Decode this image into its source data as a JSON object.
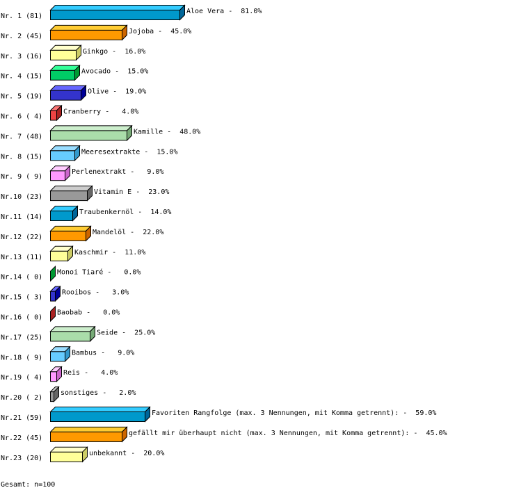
{
  "chart_data": {
    "type": "bar",
    "orientation": "horizontal",
    "style": "3d",
    "rows": [
      {
        "rank": "Nr. 1",
        "count": "(81)",
        "category": "Aloe Vera",
        "value": 81.0,
        "label": "Aloe Vera -  81.0%"
      },
      {
        "rank": "Nr. 2",
        "count": "(45)",
        "category": "Jojoba",
        "value": 45.0,
        "label": "Jojoba -  45.0%"
      },
      {
        "rank": "Nr. 3",
        "count": "(16)",
        "category": "Ginkgo",
        "value": 16.0,
        "label": "Ginkgo -  16.0%"
      },
      {
        "rank": "Nr. 4",
        "count": "(15)",
        "category": "Avocado",
        "value": 15.0,
        "label": "Avocado -  15.0%"
      },
      {
        "rank": "Nr. 5",
        "count": "(19)",
        "category": "Olive",
        "value": 19.0,
        "label": "Olive -  19.0%"
      },
      {
        "rank": "Nr. 6",
        "count": "( 4)",
        "category": "Cranberry",
        "value": 4.0,
        "label": "Cranberry -   4.0%"
      },
      {
        "rank": "Nr. 7",
        "count": "(48)",
        "category": "Kamille",
        "value": 48.0,
        "label": "Kamille -  48.0%"
      },
      {
        "rank": "Nr. 8",
        "count": "(15)",
        "category": "Meeresextrakte",
        "value": 15.0,
        "label": "Meeresextrakte -  15.0%"
      },
      {
        "rank": "Nr. 9",
        "count": "( 9)",
        "category": "Perlenextrakt",
        "value": 9.0,
        "label": "Perlenextrakt -   9.0%"
      },
      {
        "rank": "Nr.10",
        "count": "(23)",
        "category": "Vitamin E",
        "value": 23.0,
        "label": "Vitamin E -  23.0%"
      },
      {
        "rank": "Nr.11",
        "count": "(14)",
        "category": "Traubenkernöl",
        "value": 14.0,
        "label": "Traubenkernöl -  14.0%"
      },
      {
        "rank": "Nr.12",
        "count": "(22)",
        "category": "Mandelöl",
        "value": 22.0,
        "label": "Mandelöl -  22.0%"
      },
      {
        "rank": "Nr.13",
        "count": "(11)",
        "category": "Kaschmir",
        "value": 11.0,
        "label": "Kaschmir -  11.0%"
      },
      {
        "rank": "Nr.14",
        "count": "( 0)",
        "category": "Monoi Tiaré",
        "value": 0.0,
        "label": "Monoi Tiaré -   0.0%"
      },
      {
        "rank": "Nr.15",
        "count": "( 3)",
        "category": "Rooibos",
        "value": 3.0,
        "label": "Rooibos -   3.0%"
      },
      {
        "rank": "Nr.16",
        "count": "( 0)",
        "category": "Baobab",
        "value": 0.0,
        "label": "Baobab -   0.0%"
      },
      {
        "rank": "Nr.17",
        "count": "(25)",
        "category": "Seide",
        "value": 25.0,
        "label": "Seide -  25.0%"
      },
      {
        "rank": "Nr.18",
        "count": "( 9)",
        "category": "Bambus",
        "value": 9.0,
        "label": "Bambus -   9.0%"
      },
      {
        "rank": "Nr.19",
        "count": "( 4)",
        "category": "Reis",
        "value": 4.0,
        "label": "Reis -   4.0%"
      },
      {
        "rank": "Nr.20",
        "count": "( 2)",
        "category": "sonstiges",
        "value": 2.0,
        "label": "sonstiges -   2.0%"
      },
      {
        "rank": "Nr.21",
        "count": "(59)",
        "category": "Favoriten Rangfolge (max. 3 Nennungen, mit Komma getrennt):",
        "value": 59.0,
        "label": "Favoriten Rangfolge (max. 3 Nennungen, mit Komma getrennt): -  59.0%"
      },
      {
        "rank": "Nr.22",
        "count": "(45)",
        "category": "gefällt mir überhaupt nicht (max. 3 Nennungen, mit Komma getrennt):",
        "value": 45.0,
        "label": "gefällt mir überhaupt nicht (max. 3 Nennungen, mit Komma getrennt): -  45.0%"
      },
      {
        "rank": "Nr.23",
        "count": "(20)",
        "category": "unbekannt",
        "value": 20.0,
        "label": "unbekannt -  20.0%"
      }
    ],
    "palette": [
      {
        "front": "#0099cc",
        "top": "#33ccff",
        "side": "#006699"
      },
      {
        "front": "#ff9900",
        "top": "#ffcc33",
        "side": "#cc6600"
      },
      {
        "front": "#ffff99",
        "top": "#ffffcc",
        "side": "#cccc66"
      },
      {
        "front": "#00cc66",
        "top": "#33ff99",
        "side": "#009933"
      },
      {
        "front": "#3333cc",
        "top": "#6666ff",
        "side": "#000099"
      },
      {
        "front": "#ee4444",
        "top": "#ff7777",
        "side": "#aa2222"
      },
      {
        "front": "#aaddaa",
        "top": "#cceecc",
        "side": "#77aa77"
      },
      {
        "front": "#66ccff",
        "top": "#99ddff",
        "side": "#3399cc"
      },
      {
        "front": "#ff99ff",
        "top": "#ffccff",
        "side": "#cc66cc"
      },
      {
        "front": "#999999",
        "top": "#cccccc",
        "side": "#666666"
      }
    ],
    "xlim": [
      0,
      100
    ]
  },
  "footer": {
    "total": "Gesamt: n=100"
  }
}
